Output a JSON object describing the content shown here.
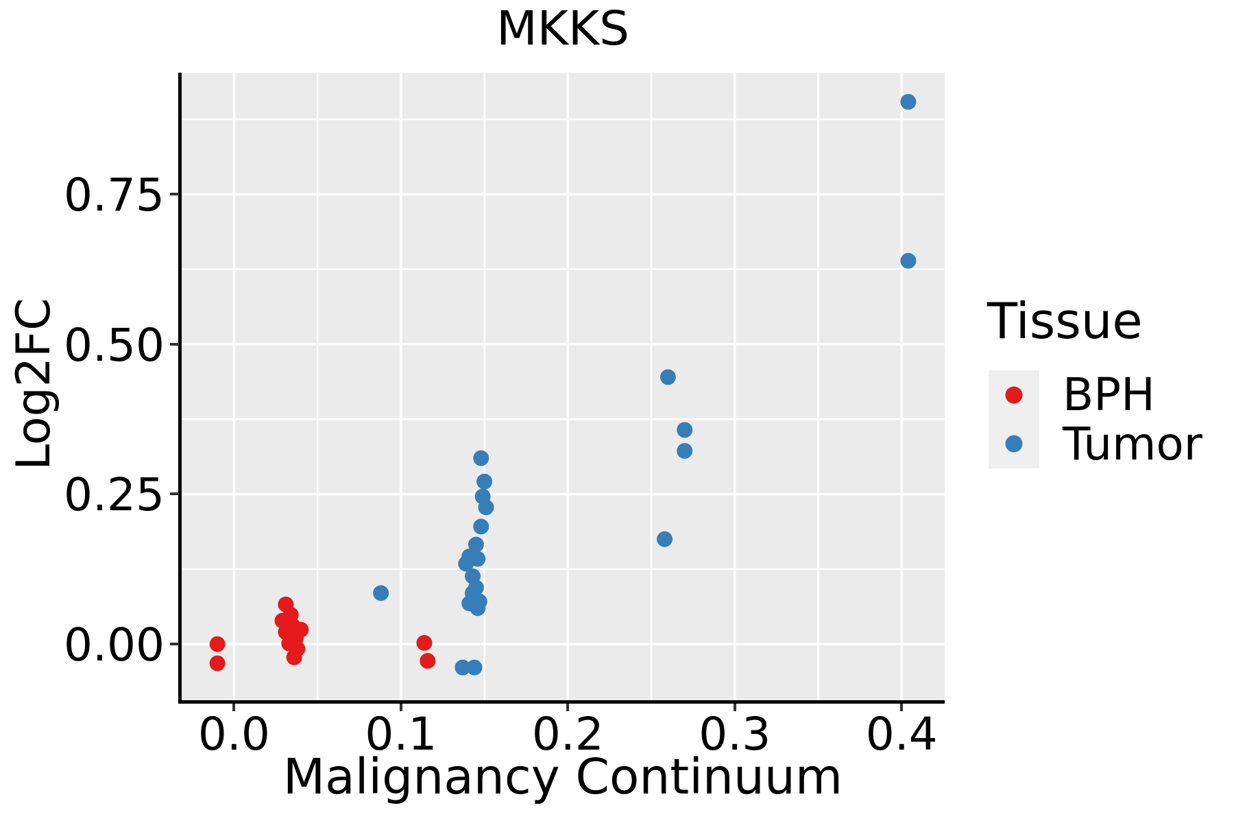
{
  "title": "MKKS",
  "axes": {
    "x": {
      "label": "Malignancy Continuum",
      "range": [
        -0.0318,
        0.4258
      ],
      "ticks": [
        {
          "value": 0.0,
          "label": "0.0"
        },
        {
          "value": 0.1,
          "label": "0.1"
        },
        {
          "value": 0.2,
          "label": "0.2"
        },
        {
          "value": 0.3,
          "label": "0.3"
        },
        {
          "value": 0.4,
          "label": "0.4"
        }
      ],
      "minor_ticks": [
        0.05,
        0.15,
        0.25,
        0.35
      ]
    },
    "y": {
      "label": "Log2FC",
      "range": [
        -0.0936,
        0.9526
      ],
      "ticks": [
        {
          "value": 0.0,
          "label": "0.00"
        },
        {
          "value": 0.25,
          "label": "0.25"
        },
        {
          "value": 0.5,
          "label": "0.50"
        },
        {
          "value": 0.75,
          "label": "0.75"
        }
      ],
      "minor_ticks": [
        0.125,
        0.375,
        0.625,
        0.875
      ]
    }
  },
  "legend": {
    "title": "Tissue",
    "items": [
      {
        "label": "BPH",
        "color": "#e41a1c"
      },
      {
        "label": "Tumor",
        "color": "#377eb8"
      }
    ]
  },
  "style": {
    "panel_bg": "#ebebeb",
    "grid_color": "#ffffff",
    "major_grid_width": 3.5,
    "minor_grid_width": 2.5,
    "point_radius": 11.5,
    "legend_key_bg": "#efefef"
  },
  "chart_data": {
    "type": "scatter",
    "title": "MKKS",
    "xlabel": "Malignancy Continuum",
    "ylabel": "Log2FC",
    "xlim": [
      -0.0318,
      0.4258
    ],
    "ylim": [
      -0.0936,
      0.9526
    ],
    "x_ticks": [
      0.0,
      0.1,
      0.2,
      0.3,
      0.4
    ],
    "y_ticks": [
      0.0,
      0.25,
      0.5,
      0.75
    ],
    "grid": true,
    "legend_position": "right",
    "legend_title": "Tissue",
    "series": [
      {
        "name": "BPH",
        "color": "#e41a1c",
        "points": [
          [
            -0.01,
            0.0
          ],
          [
            -0.01,
            -0.032
          ],
          [
            0.031,
            0.066
          ],
          [
            0.034,
            0.049
          ],
          [
            0.029,
            0.039
          ],
          [
            0.035,
            0.031
          ],
          [
            0.04,
            0.024
          ],
          [
            0.031,
            0.02
          ],
          [
            0.037,
            0.01
          ],
          [
            0.033,
            0.001
          ],
          [
            0.038,
            -0.008
          ],
          [
            0.036,
            -0.022
          ],
          [
            0.114,
            0.002
          ],
          [
            0.116,
            -0.028
          ]
        ]
      },
      {
        "name": "Tumor",
        "color": "#377eb8",
        "points": [
          [
            0.088,
            0.085
          ],
          [
            0.148,
            0.31
          ],
          [
            0.15,
            0.271
          ],
          [
            0.149,
            0.246
          ],
          [
            0.151,
            0.228
          ],
          [
            0.148,
            0.196
          ],
          [
            0.145,
            0.166
          ],
          [
            0.141,
            0.146
          ],
          [
            0.146,
            0.142
          ],
          [
            0.139,
            0.134
          ],
          [
            0.143,
            0.113
          ],
          [
            0.145,
            0.094
          ],
          [
            0.143,
            0.085
          ],
          [
            0.147,
            0.071
          ],
          [
            0.141,
            0.068
          ],
          [
            0.146,
            0.06
          ],
          [
            0.137,
            -0.039
          ],
          [
            0.144,
            -0.039
          ],
          [
            0.26,
            0.445
          ],
          [
            0.27,
            0.357
          ],
          [
            0.27,
            0.322
          ],
          [
            0.258,
            0.175
          ],
          [
            0.404,
            0.904
          ],
          [
            0.404,
            0.639
          ]
        ]
      }
    ]
  }
}
